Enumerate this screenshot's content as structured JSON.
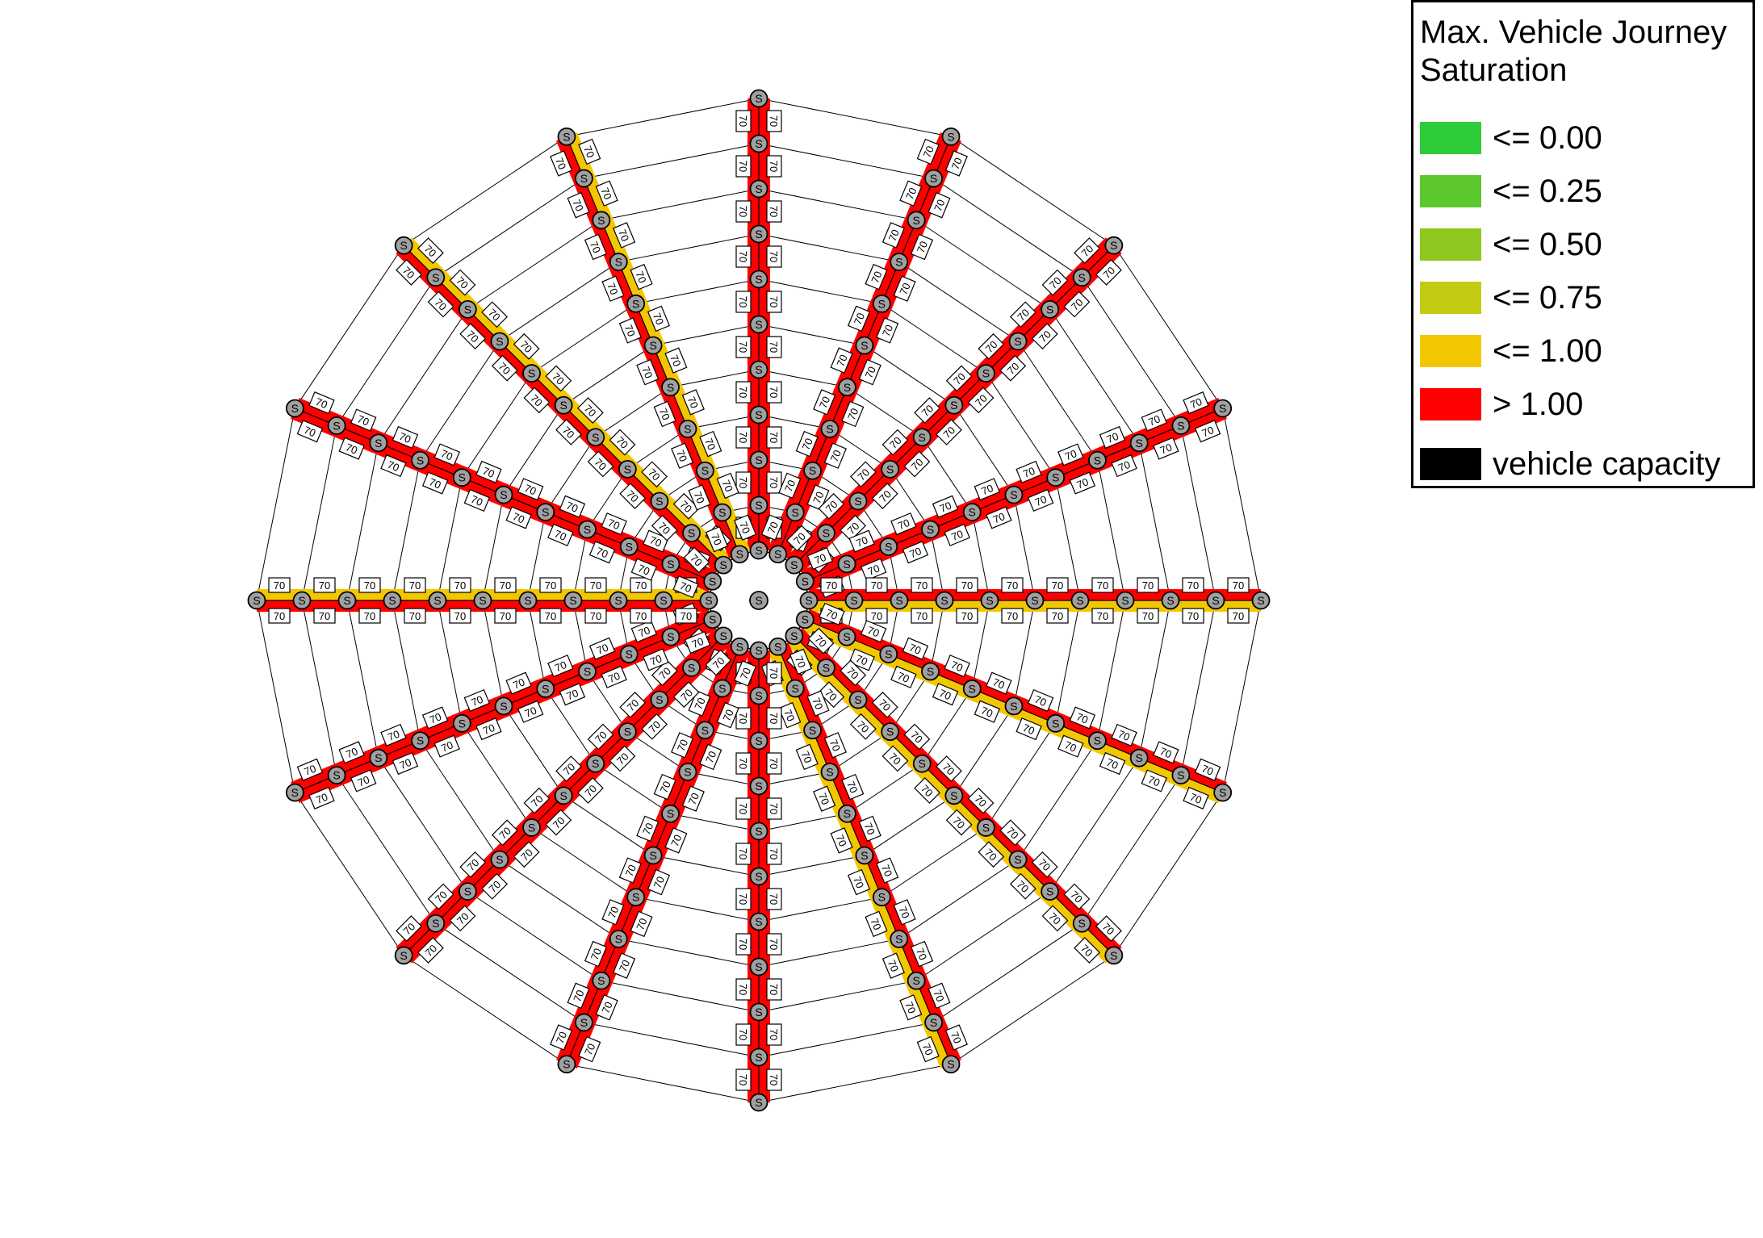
{
  "map": {
    "spokes": 16,
    "rings": 10,
    "stop_symbol": "S",
    "capacity_label": "70",
    "colors": {
      "ring_line": "#000000",
      "stop_fill": "#a0a0a0",
      "saturation_over": "#ff0000",
      "saturation_le_1": "#f2c700"
    },
    "bands": [
      {
        "name": "northbound",
        "upper_band": "over_1",
        "lower_band": "over_1"
      },
      {
        "name": "nne",
        "upper_band": "over_1",
        "lower_band": "over_1"
      },
      {
        "name": "ne",
        "upper_band": "over_1",
        "lower_band": "over_1"
      },
      {
        "name": "ene",
        "upper_band": "over_1",
        "lower_band": "over_1"
      },
      {
        "name": "east",
        "upper_band": "over_1",
        "lower_band": "le_1"
      },
      {
        "name": "ese",
        "upper_band": "over_1",
        "lower_band": "le_1"
      },
      {
        "name": "se",
        "upper_band": "over_1",
        "lower_band": "le_1"
      },
      {
        "name": "sse",
        "upper_band": "over_1",
        "lower_band": "le_1"
      },
      {
        "name": "south",
        "upper_band": "over_1",
        "lower_band": "over_1"
      },
      {
        "name": "ssw",
        "upper_band": "over_1",
        "lower_band": "over_1"
      },
      {
        "name": "sw",
        "upper_band": "over_1",
        "lower_band": "over_1"
      },
      {
        "name": "wsw",
        "upper_band": "over_1",
        "lower_band": "over_1"
      },
      {
        "name": "west",
        "upper_band": "over_1",
        "lower_band": "le_1"
      },
      {
        "name": "wnw",
        "upper_band": "over_1",
        "lower_band": "over_1"
      },
      {
        "name": "nw",
        "upper_band": "over_1",
        "lower_band": "le_1"
      },
      {
        "name": "nnw",
        "upper_band": "over_1",
        "lower_band": "le_1"
      }
    ]
  },
  "legend": {
    "title": "Max. Vehicle Journey Saturation",
    "items": [
      {
        "label": "<= 0.00",
        "color": "#2ecc3a"
      },
      {
        "label": "<= 0.25",
        "color": "#5cc82e"
      },
      {
        "label": "<= 0.50",
        "color": "#8ec81e"
      },
      {
        "label": "<= 0.75",
        "color": "#c2cc12"
      },
      {
        "label": "<= 1.00",
        "color": "#f2c700"
      },
      {
        "label": "> 1.00",
        "color": "#ff0000"
      }
    ],
    "capacity_item": {
      "label": "vehicle capacity",
      "color": "#000000"
    }
  }
}
